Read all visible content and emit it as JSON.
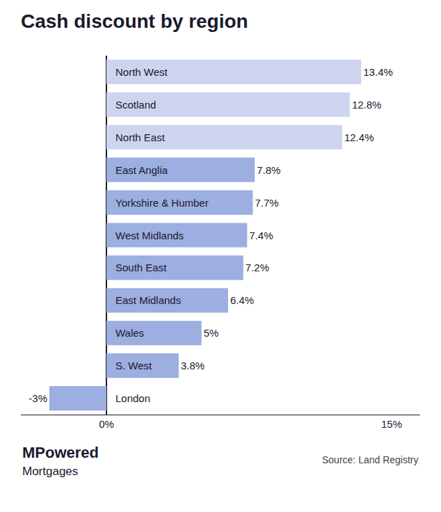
{
  "chart_data": {
    "type": "bar",
    "orientation": "horizontal",
    "title": "Cash discount by region",
    "categories": [
      "North West",
      "Scotland",
      "North East",
      "East Anglia",
      "Yorkshire & Humber",
      "West Midlands",
      "South East",
      "East Midlands",
      "Wales",
      "S. West",
      "London"
    ],
    "values": [
      13.4,
      12.8,
      12.4,
      7.8,
      7.7,
      7.4,
      7.2,
      6.4,
      5.0,
      3.8,
      -3.0
    ],
    "value_labels": [
      "13.4%",
      "12.8%",
      "12.4%",
      "7.8%",
      "7.7%",
      "7.4%",
      "7.2%",
      "6.4%",
      "5%",
      "3.8%",
      "-3%"
    ],
    "data_labels": true,
    "colors": [
      "#cdd5ee",
      "#cdd5ee",
      "#cdd5ee",
      "#9daee0",
      "#9daee0",
      "#9daee0",
      "#9daee0",
      "#9daee0",
      "#9daee0",
      "#9daee0",
      "#9daee0"
    ],
    "xlim": [
      -4.5,
      16.5
    ],
    "xticks": [
      {
        "value": 0,
        "label": "0%"
      },
      {
        "value": 15,
        "label": "15%"
      }
    ],
    "tick_labels": "x",
    "grid": false,
    "annotations": [
      "MPowered",
      "Mortgages",
      "Source: Land Registry"
    ]
  }
}
